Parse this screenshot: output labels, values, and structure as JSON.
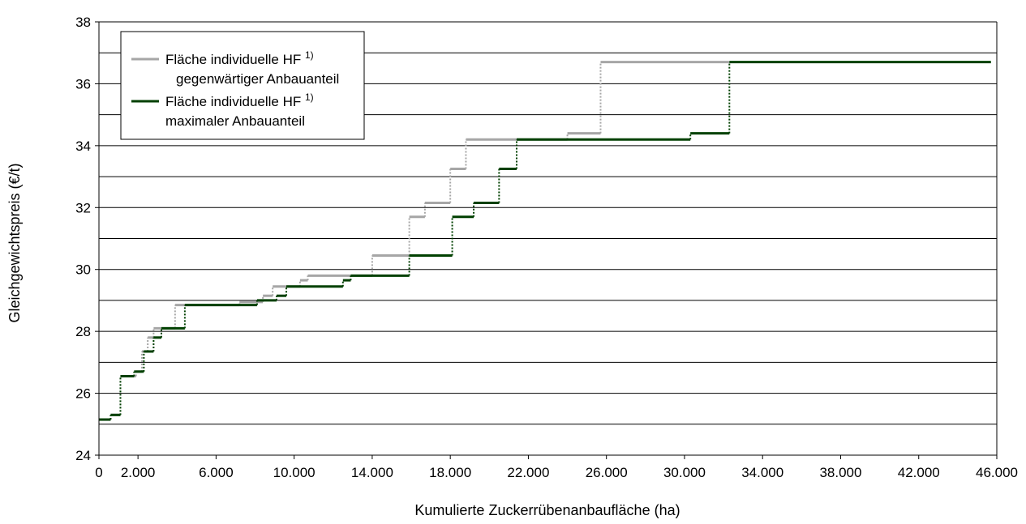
{
  "chart_data": {
    "type": "line",
    "subtype": "step",
    "xlabel": "Kumulierte Zuckerrübenanbaufläche (ha)",
    "ylabel": "Gleichgewichtspreis (€/t)",
    "xlim": [
      0,
      46000
    ],
    "ylim": [
      24,
      38
    ],
    "x_ticks": [
      0,
      2000,
      6000,
      10000,
      14000,
      18000,
      22000,
      26000,
      30000,
      34000,
      38000,
      42000,
      46000
    ],
    "x_tick_labels": [
      "0",
      "2.000",
      "6.000",
      "10.000",
      "14.000",
      "18.000",
      "22.000",
      "26.000",
      "30.000",
      "34.000",
      "38.000",
      "42.000",
      "46.000"
    ],
    "y_ticks": [
      24,
      26,
      28,
      30,
      32,
      34,
      36,
      38
    ],
    "y_tick_labels": [
      "24",
      "26",
      "28",
      "30",
      "32",
      "34",
      "36",
      "38"
    ],
    "grid_y": [
      25,
      26,
      27,
      28,
      29,
      30,
      31,
      32,
      33,
      34,
      35,
      36,
      37,
      38
    ],
    "legend_position": "top-left",
    "series": [
      {
        "name_line1": "Fläche individuelle HF",
        "name_sup": "1)",
        "name_line2": "gegenwärtiger Anbauanteil",
        "color": "#a6a6a6",
        "steps": [
          [
            0,
            25.15
          ],
          [
            600,
            25.3
          ],
          [
            1100,
            26.55
          ],
          [
            1900,
            26.7
          ],
          [
            2200,
            27.35
          ],
          [
            2500,
            27.8
          ],
          [
            2800,
            28.1
          ],
          [
            3900,
            28.85
          ],
          [
            7200,
            28.95
          ],
          [
            8400,
            29.15
          ],
          [
            8900,
            29.45
          ],
          [
            10300,
            29.65
          ],
          [
            10700,
            29.8
          ],
          [
            14000,
            30.45
          ],
          [
            15900,
            31.7
          ],
          [
            16700,
            32.15
          ],
          [
            18000,
            33.25
          ],
          [
            18800,
            34.2
          ],
          [
            24000,
            34.4
          ],
          [
            25700,
            36.7
          ]
        ],
        "x_end": 32300
      },
      {
        "name_line1": "Fläche individuelle HF",
        "name_sup": "1)",
        "name_line2": "maximaler Anbauanteil",
        "color": "#004000",
        "steps": [
          [
            0,
            25.15
          ],
          [
            600,
            25.3
          ],
          [
            1100,
            26.55
          ],
          [
            1800,
            26.7
          ],
          [
            2300,
            27.35
          ],
          [
            2800,
            27.8
          ],
          [
            3200,
            28.1
          ],
          [
            4400,
            28.85
          ],
          [
            8100,
            29.0
          ],
          [
            9100,
            29.15
          ],
          [
            9600,
            29.45
          ],
          [
            12500,
            29.65
          ],
          [
            12900,
            29.8
          ],
          [
            15900,
            30.45
          ],
          [
            18100,
            31.7
          ],
          [
            19200,
            32.15
          ],
          [
            20500,
            33.25
          ],
          [
            21400,
            34.2
          ],
          [
            30300,
            34.4
          ],
          [
            32300,
            36.7
          ]
        ],
        "x_end": 45700
      }
    ]
  }
}
